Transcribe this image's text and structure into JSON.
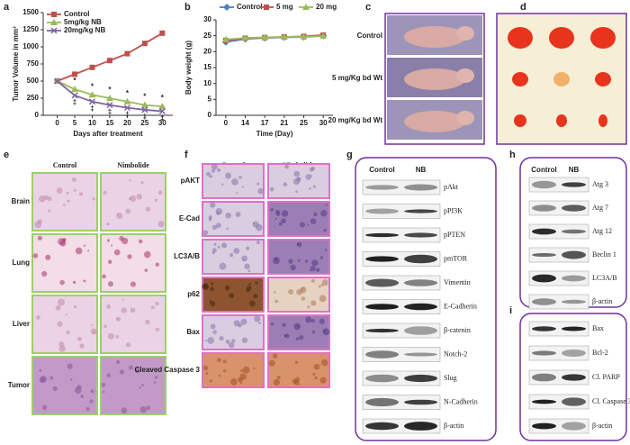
{
  "chart_data": [
    {
      "type": "line",
      "panel_label": "a",
      "y_label": "Tumor Volume in mm³",
      "x_label": "Days after treatment",
      "x": [
        0,
        5,
        10,
        15,
        20,
        25,
        30
      ],
      "xlim": [
        -4,
        33
      ],
      "xticks": [
        0,
        5,
        10,
        15,
        20,
        25,
        30
      ],
      "ylim": [
        0,
        1500
      ],
      "yticks": [
        0,
        250,
        500,
        750,
        1000,
        1250,
        1500
      ],
      "legend": "top-left",
      "series": [
        {
          "name": "Control",
          "color": "#c0504d",
          "marker": "square",
          "values": [
            500,
            600,
            700,
            800,
            900,
            1050,
            1200
          ]
        },
        {
          "name": "5mg/kg NB",
          "color": "#9bbb59",
          "marker": "triangle",
          "values": [
            500,
            380,
            300,
            250,
            200,
            150,
            130
          ]
        },
        {
          "name": "20mg/kg NB",
          "color": "#8064a2",
          "marker": "cross",
          "values": [
            500,
            290,
            200,
            150,
            110,
            80,
            60
          ]
        }
      ],
      "significance": {
        "x": [
          5,
          10,
          15,
          20,
          25,
          30
        ],
        "upper": "*",
        "lower": "‡"
      }
    },
    {
      "type": "line",
      "panel_label": "b",
      "y_label": "Body weight (g)",
      "x_label": "Time (Day)",
      "categories": [
        "0",
        "14",
        "17",
        "21",
        "25",
        "30"
      ],
      "ylim": [
        0,
        30
      ],
      "yticks": [
        0,
        5,
        10,
        15,
        20,
        25,
        30
      ],
      "legend": "top",
      "series": [
        {
          "name": "Control",
          "color": "#4f81bd",
          "marker": "diamond",
          "values": [
            23,
            24,
            24.3,
            24.5,
            24.6,
            25
          ]
        },
        {
          "name": "5 mg",
          "color": "#c0504d",
          "marker": "square",
          "values": [
            23.5,
            24.2,
            24.4,
            24.6,
            24.8,
            25.2
          ]
        },
        {
          "name": "20 mg",
          "color": "#9bbb59",
          "marker": "triangle",
          "values": [
            23.8,
            24.3,
            24.5,
            24.6,
            24.7,
            24.9
          ]
        }
      ]
    }
  ],
  "figure": {
    "c": {
      "label": "c",
      "rows": [
        "Control",
        "5 mg/Kg bd Wt",
        "20 mg/Kg bd Wt"
      ]
    },
    "d": {
      "label": "d"
    },
    "e": {
      "label": "e",
      "columns": [
        "Control",
        "Nimbolide"
      ],
      "rows": [
        "Brain",
        "Lung",
        "Liver",
        "Tumor"
      ]
    },
    "f": {
      "label": "f",
      "columns": [
        "Control",
        "Nimbolide"
      ],
      "rows": [
        "pAKT",
        "E-Cad",
        "LC3A/B",
        "p62",
        "Bax",
        "Cleaved Caspase 3"
      ]
    },
    "g": {
      "label": "g",
      "columns": [
        "Control",
        "NB"
      ],
      "rows": [
        "pAkt",
        "pPI3K",
        "pPTEN",
        "pmTOR",
        "Vimentin",
        "E-Cadherin",
        "β-catenin",
        "Notch-2",
        "Slug",
        "N-Cadherin",
        "β-actin"
      ]
    },
    "h": {
      "label": "h",
      "columns": [
        "Control",
        "NB"
      ],
      "rows": [
        "Atg 3",
        "Atg 7",
        "Atg 12",
        "Beclin 1",
        "LC3A/B",
        "β-actin"
      ]
    },
    "i": {
      "label": "i",
      "rows": [
        "Bax",
        "Bcl-2",
        "Cl. PARP",
        "Cl. Caspase 3",
        "β-actin"
      ]
    }
  }
}
